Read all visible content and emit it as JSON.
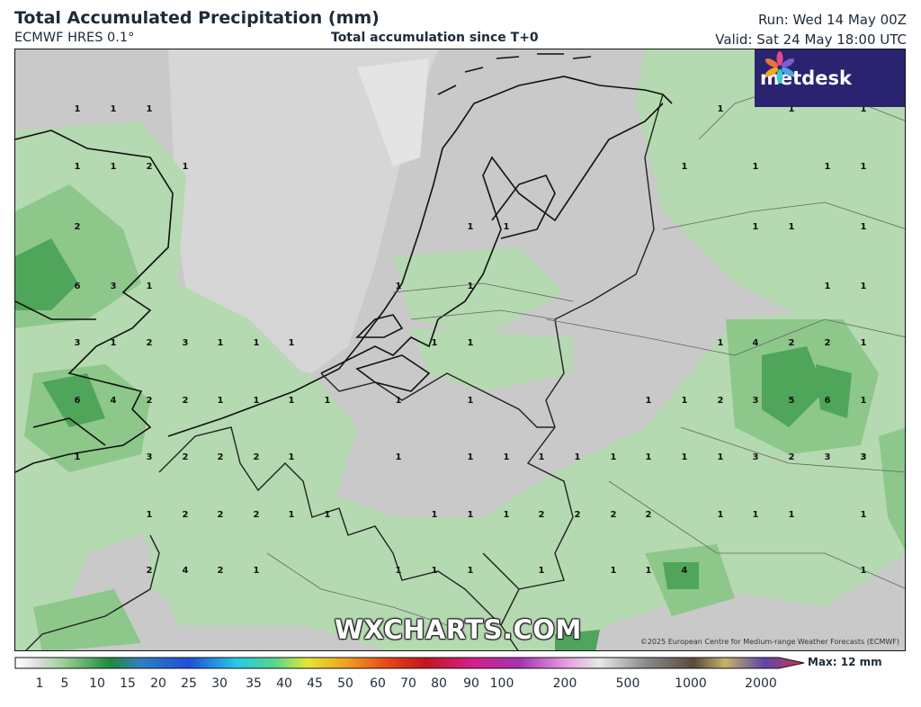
{
  "header": {
    "title": "Total Accumulated Precipitation (mm)",
    "model": "ECMWF HRES 0.1°",
    "subtitle": "Total accumulation since T+0",
    "run": "Run: Wed 14 May 00Z",
    "valid": "Valid: Sat 24 May 18:00 UTC"
  },
  "logo": {
    "text": "metdesk",
    "icon": "metdesk-petal-icon"
  },
  "watermark": "WXCHARTS.COM",
  "copyright": "©2025 European Centre for Medium-range Weather Forecasts (ECMWF)",
  "legend": {
    "labels": [
      "1",
      "5",
      "10",
      "15",
      "20",
      "25",
      "30",
      "35",
      "40",
      "45",
      "50",
      "60",
      "70",
      "80",
      "90",
      "100",
      "200",
      "500",
      "1000",
      "2000"
    ],
    "max_label": "Max: 12 mm"
  },
  "colors": {
    "background_gray": "#c8c8c8",
    "light_green": "#b5d9b0",
    "mid_green": "#8dc78a",
    "dark_green": "#4fa55a",
    "border_color": "#111111"
  },
  "grid_values": {
    "row1": [
      "1",
      "1",
      "1",
      "1",
      "1",
      "1"
    ],
    "row2": [
      "1",
      "1",
      "2",
      "1",
      "1",
      "1",
      "1",
      "1"
    ],
    "row3": [
      "2",
      "1",
      "1",
      "1",
      "1",
      "1"
    ],
    "row4": [
      "6",
      "3",
      "1",
      "1",
      "1",
      "1",
      "1"
    ],
    "row5": [
      "3",
      "1",
      "2",
      "3",
      "1",
      "1",
      "1",
      "1",
      "1",
      "1",
      "4",
      "2",
      "2",
      "1"
    ],
    "row6": [
      "6",
      "4",
      "2",
      "2",
      "1",
      "1",
      "1",
      "1",
      "1",
      "1",
      "1",
      "1",
      "2",
      "3",
      "5",
      "6",
      "1"
    ],
    "row7": [
      "1",
      "3",
      "2",
      "2",
      "2",
      "1",
      "1",
      "1",
      "1",
      "1",
      "1",
      "1",
      "1",
      "1",
      "1",
      "3",
      "2",
      "3",
      "3",
      "3"
    ],
    "row8": [
      "1",
      "2",
      "2",
      "2",
      "1",
      "1",
      "1",
      "1",
      "1",
      "2",
      "2",
      "2",
      "2",
      "1",
      "1",
      "1",
      "1"
    ],
    "row9": [
      "2",
      "4",
      "2",
      "1",
      "1",
      "1",
      "1",
      "1",
      "1",
      "1",
      "4",
      "1"
    ]
  }
}
